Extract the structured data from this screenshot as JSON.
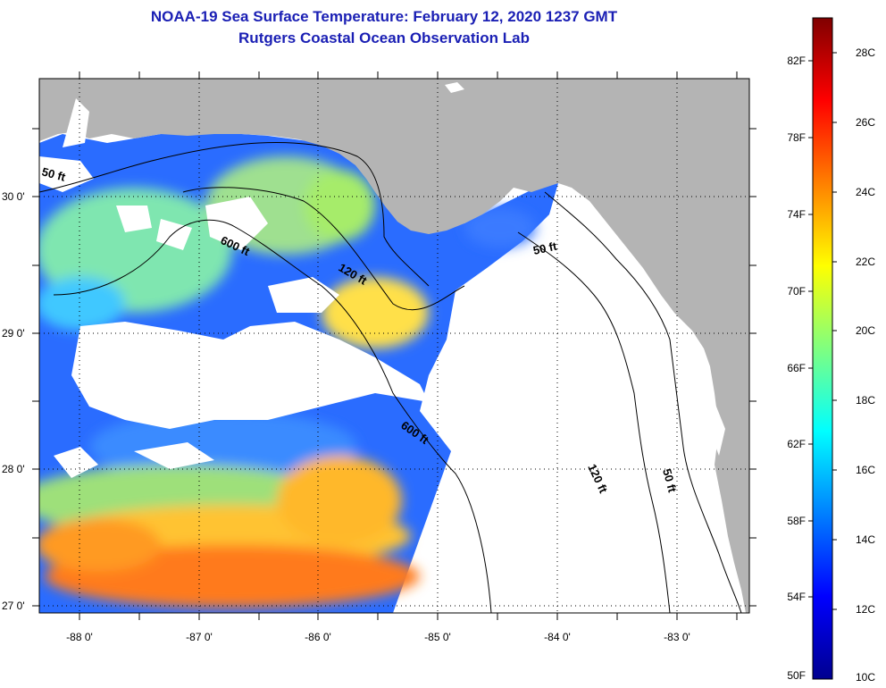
{
  "header": {
    "title": "NOAA-19 Sea Surface Temperature:  February 12, 2020 1237 GMT",
    "subtitle": "Rutgers Coastal Ocean Observation Lab"
  },
  "map": {
    "region": "Gulf of Mexico / Florida Big Bend",
    "lon_range": [
      -88.33,
      -82.5
    ],
    "lat_range": [
      26.98,
      30.85
    ],
    "lon_ticks": [
      "-88 0'",
      "-87 0'",
      "-86 0'",
      "-85 0'",
      "-84 0'",
      "-83 0'"
    ],
    "lat_ticks": [
      "30 0'",
      "29 0'",
      "28 0'",
      "27 0'"
    ],
    "contours": [
      {
        "label": "50 ft"
      },
      {
        "label": "600 ft"
      },
      {
        "label": "120 ft"
      },
      {
        "label": "600 ft"
      },
      {
        "label": "50 ft"
      },
      {
        "label": "120 ft"
      },
      {
        "label": "50 ft"
      }
    ],
    "colors": {
      "land": "#b4b4b4",
      "no_data": "#ffffff",
      "frame": "#000000"
    }
  },
  "colorbar": {
    "fahrenheit_labels": [
      "82F",
      "78F",
      "74F",
      "70F",
      "66F",
      "62F",
      "58F",
      "54F",
      "50F"
    ],
    "celsius_labels": [
      "28C",
      "26C",
      "24C",
      "22C",
      "20C",
      "18C",
      "16C",
      "14C",
      "12C",
      "10C"
    ],
    "range_c": [
      10,
      29
    ],
    "colormap": "jet"
  }
}
